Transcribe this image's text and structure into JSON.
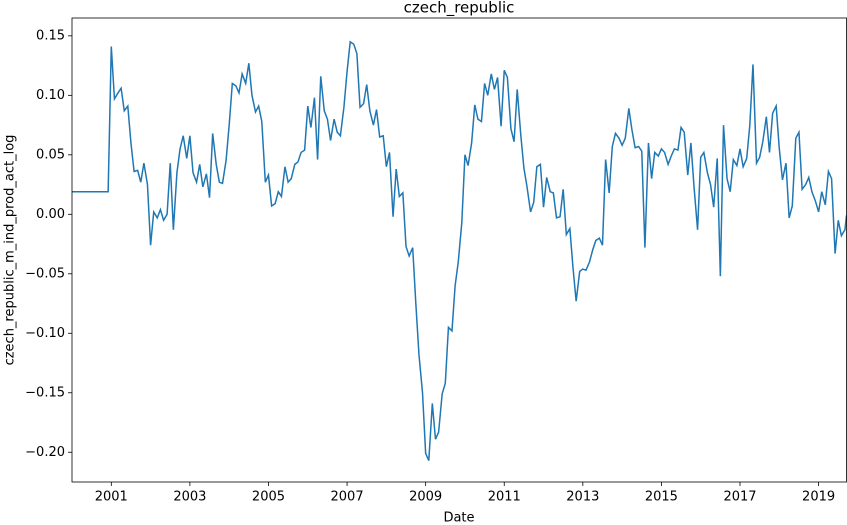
{
  "chart_data": {
    "type": "line",
    "title": "czech_republic",
    "x_label": "Date",
    "y_label": "czech_republic_m_ind_prod_act_log",
    "color": "#1f77b4",
    "xlim": [
      2000,
      2019.71
    ],
    "xticks": [
      2001,
      2003,
      2005,
      2007,
      2009,
      2011,
      2013,
      2015,
      2017,
      2019
    ],
    "ylim": [
      -0.225,
      0.165
    ],
    "yticks": [
      {
        "value": -0.2,
        "label": "−0.20"
      },
      {
        "value": -0.15,
        "label": "−0.15"
      },
      {
        "value": -0.1,
        "label": "−0.10"
      },
      {
        "value": -0.05,
        "label": "−0.05"
      },
      {
        "value": 0,
        "label": "0.00"
      },
      {
        "value": 0.05,
        "label": "0.05"
      },
      {
        "value": 0.1,
        "label": "0.10"
      },
      0.15
    ],
    "x": [
      2000.0,
      2000.92,
      2001.0,
      2001.08,
      2001.17,
      2001.25,
      2001.33,
      2001.42,
      2001.5,
      2001.58,
      2001.67,
      2001.75,
      2001.83,
      2001.92,
      2002.0,
      2002.08,
      2002.17,
      2002.25,
      2002.33,
      2002.42,
      2002.5,
      2002.58,
      2002.67,
      2002.75,
      2002.83,
      2002.92,
      2003.0,
      2003.08,
      2003.17,
      2003.25,
      2003.33,
      2003.42,
      2003.5,
      2003.58,
      2003.67,
      2003.75,
      2003.83,
      2003.92,
      2004.0,
      2004.08,
      2004.17,
      2004.25,
      2004.33,
      2004.42,
      2004.5,
      2004.58,
      2004.67,
      2004.75,
      2004.83,
      2004.92,
      2005.0,
      2005.08,
      2005.17,
      2005.25,
      2005.33,
      2005.42,
      2005.5,
      2005.58,
      2005.67,
      2005.75,
      2005.83,
      2005.92,
      2006.0,
      2006.08,
      2006.17,
      2006.25,
      2006.33,
      2006.42,
      2006.5,
      2006.58,
      2006.67,
      2006.75,
      2006.83,
      2006.92,
      2007.0,
      2007.08,
      2007.17,
      2007.25,
      2007.33,
      2007.42,
      2007.5,
      2007.58,
      2007.67,
      2007.75,
      2007.83,
      2007.92,
      2008.0,
      2008.08,
      2008.17,
      2008.25,
      2008.33,
      2008.42,
      2008.5,
      2008.58,
      2008.67,
      2008.75,
      2008.83,
      2008.92,
      2009.0,
      2009.08,
      2009.17,
      2009.25,
      2009.33,
      2009.42,
      2009.5,
      2009.58,
      2009.67,
      2009.75,
      2009.83,
      2009.92,
      2010.0,
      2010.08,
      2010.17,
      2010.25,
      2010.33,
      2010.42,
      2010.5,
      2010.58,
      2010.67,
      2010.75,
      2010.83,
      2010.92,
      2011.0,
      2011.08,
      2011.17,
      2011.25,
      2011.33,
      2011.42,
      2011.5,
      2011.58,
      2011.67,
      2011.75,
      2011.83,
      2011.92,
      2012.0,
      2012.08,
      2012.17,
      2012.25,
      2012.33,
      2012.42,
      2012.5,
      2012.58,
      2012.67,
      2012.75,
      2012.83,
      2012.92,
      2013.0,
      2013.08,
      2013.17,
      2013.25,
      2013.33,
      2013.42,
      2013.5,
      2013.58,
      2013.67,
      2013.75,
      2013.83,
      2013.92,
      2014.0,
      2014.08,
      2014.17,
      2014.25,
      2014.33,
      2014.42,
      2014.5,
      2014.58,
      2014.67,
      2014.75,
      2014.83,
      2014.92,
      2015.0,
      2015.08,
      2015.17,
      2015.25,
      2015.33,
      2015.42,
      2015.5,
      2015.58,
      2015.67,
      2015.75,
      2015.83,
      2015.92,
      2016.0,
      2016.08,
      2016.17,
      2016.25,
      2016.33,
      2016.42,
      2016.5,
      2016.58,
      2016.67,
      2016.75,
      2016.83,
      2016.92,
      2017.0,
      2017.08,
      2017.17,
      2017.25,
      2017.33,
      2017.42,
      2017.5,
      2017.58,
      2017.67,
      2017.75,
      2017.83,
      2017.92,
      2018.0,
      2018.08,
      2018.17,
      2018.25,
      2018.33,
      2018.42,
      2018.5,
      2018.58,
      2018.67,
      2018.75,
      2018.83,
      2018.92,
      2019.0,
      2019.08,
      2019.17,
      2019.25,
      2019.33,
      2019.42,
      2019.5,
      2019.58,
      2019.67,
      2019.71
    ],
    "values": [
      0.019,
      0.019,
      0.141,
      0.097,
      0.102,
      0.106,
      0.087,
      0.091,
      0.06,
      0.036,
      0.037,
      0.027,
      0.043,
      0.025,
      -0.026,
      0.002,
      -0.003,
      0.004,
      -0.005,
      0.0,
      0.043,
      -0.013,
      0.035,
      0.055,
      0.066,
      0.047,
      0.066,
      0.035,
      0.027,
      0.042,
      0.023,
      0.034,
      0.014,
      0.068,
      0.042,
      0.027,
      0.026,
      0.045,
      0.075,
      0.11,
      0.108,
      0.102,
      0.118,
      0.11,
      0.127,
      0.1,
      0.086,
      0.091,
      0.078,
      0.027,
      0.033,
      0.007,
      0.009,
      0.019,
      0.015,
      0.04,
      0.027,
      0.03,
      0.042,
      0.044,
      0.052,
      0.054,
      0.091,
      0.073,
      0.098,
      0.046,
      0.116,
      0.087,
      0.08,
      0.062,
      0.08,
      0.069,
      0.066,
      0.09,
      0.12,
      0.145,
      0.143,
      0.135,
      0.09,
      0.093,
      0.109,
      0.087,
      0.075,
      0.088,
      0.065,
      0.066,
      0.04,
      0.052,
      -0.002,
      0.038,
      0.015,
      0.018,
      -0.027,
      -0.035,
      -0.028,
      -0.075,
      -0.118,
      -0.15,
      -0.201,
      -0.207,
      -0.159,
      -0.189,
      -0.183,
      -0.151,
      -0.142,
      -0.095,
      -0.098,
      -0.06,
      -0.04,
      -0.007,
      0.05,
      0.041,
      0.06,
      0.092,
      0.08,
      0.078,
      0.11,
      0.1,
      0.118,
      0.105,
      0.115,
      0.074,
      0.121,
      0.115,
      0.072,
      0.061,
      0.105,
      0.067,
      0.039,
      0.023,
      0.002,
      0.01,
      0.04,
      0.042,
      0.006,
      0.031,
      0.019,
      0.018,
      -0.003,
      -0.002,
      0.021,
      -0.017,
      -0.012,
      -0.045,
      -0.073,
      -0.048,
      -0.046,
      -0.047,
      -0.04,
      -0.03,
      -0.022,
      -0.02,
      -0.026,
      0.046,
      0.018,
      0.057,
      0.068,
      0.064,
      0.058,
      0.064,
      0.089,
      0.071,
      0.056,
      0.057,
      0.053,
      -0.028,
      0.06,
      0.03,
      0.052,
      0.049,
      0.055,
      0.052,
      0.042,
      0.049,
      0.055,
      0.054,
      0.073,
      0.069,
      0.033,
      0.06,
      0.023,
      -0.013,
      0.048,
      0.052,
      0.035,
      0.025,
      0.006,
      0.047,
      -0.052,
      0.075,
      0.03,
      0.019,
      0.046,
      0.041,
      0.055,
      0.04,
      0.047,
      0.075,
      0.126,
      0.043,
      0.048,
      0.061,
      0.082,
      0.052,
      0.085,
      0.091,
      0.055,
      0.029,
      0.043,
      -0.003,
      0.007,
      0.064,
      0.069,
      0.021,
      0.025,
      0.031,
      0.019,
      0.011,
      0.002,
      0.019,
      0.008,
      0.036,
      0.03,
      -0.033,
      -0.005,
      -0.018,
      -0.013,
      -0.001
    ]
  }
}
